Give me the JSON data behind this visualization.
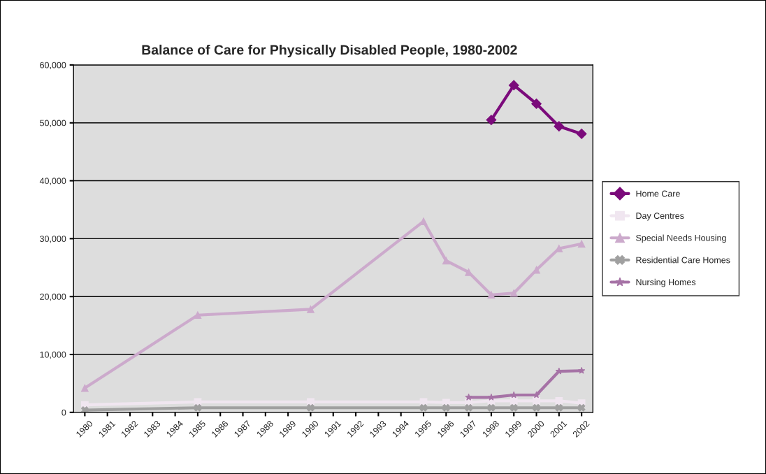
{
  "chart_data": {
    "type": "line",
    "title": "Balance of Care for Physically Disabled People, 1980-2002",
    "categories": [
      "1980",
      "1981",
      "1982",
      "1983",
      "1984",
      "1985",
      "1986",
      "1987",
      "1988",
      "1989",
      "1990",
      "1991",
      "1992",
      "1993",
      "1994",
      "1995",
      "1996",
      "1997",
      "1998",
      "1999",
      "2000",
      "2001",
      "2002"
    ],
    "series": [
      {
        "name": "Home Care",
        "color": "#7b0a7b",
        "marker": "diamond",
        "values": [
          null,
          null,
          null,
          null,
          null,
          null,
          null,
          null,
          null,
          null,
          null,
          null,
          null,
          null,
          null,
          null,
          null,
          null,
          50500,
          56500,
          53300,
          49400,
          48100
        ]
      },
      {
        "name": "Day Centres",
        "color": "#f0e6f0",
        "marker": "square",
        "values": [
          1300,
          null,
          null,
          null,
          null,
          1800,
          null,
          null,
          null,
          null,
          1800,
          null,
          null,
          null,
          null,
          1800,
          1700,
          1700,
          2000,
          2000,
          2000,
          2000,
          1600
        ]
      },
      {
        "name": "Special Needs Housing",
        "color": "#ccaacc",
        "marker": "triangle",
        "values": [
          4200,
          null,
          null,
          null,
          null,
          16800,
          null,
          null,
          null,
          null,
          17800,
          null,
          null,
          null,
          null,
          33000,
          26200,
          24200,
          20300,
          20600,
          24600,
          28300,
          29100
        ]
      },
      {
        "name": "Residential Care Homes",
        "color": "#a0a0a0",
        "marker": "cross",
        "values": [
          400,
          null,
          null,
          null,
          null,
          800,
          null,
          null,
          null,
          null,
          800,
          null,
          null,
          null,
          null,
          800,
          800,
          800,
          800,
          800,
          800,
          800,
          800
        ]
      },
      {
        "name": "Nursing Homes",
        "color": "#a673a6",
        "marker": "star",
        "values": [
          null,
          null,
          null,
          null,
          null,
          null,
          null,
          null,
          null,
          null,
          null,
          null,
          null,
          null,
          null,
          null,
          null,
          2600,
          2600,
          3000,
          3000,
          7100,
          7200
        ]
      }
    ],
    "ylim": [
      0,
      60000
    ],
    "yticks": [
      {
        "value": 0,
        "label": "0"
      },
      {
        "value": 10000,
        "label": "10,000"
      },
      {
        "value": 20000,
        "label": "20,000"
      },
      {
        "value": 30000,
        "label": "30,000"
      },
      {
        "value": 40000,
        "label": "40,000"
      },
      {
        "value": 50000,
        "label": "50,000"
      },
      {
        "value": 60000,
        "label": "60,000"
      }
    ],
    "grid": "y",
    "legend": "right",
    "line_style": "solid"
  }
}
